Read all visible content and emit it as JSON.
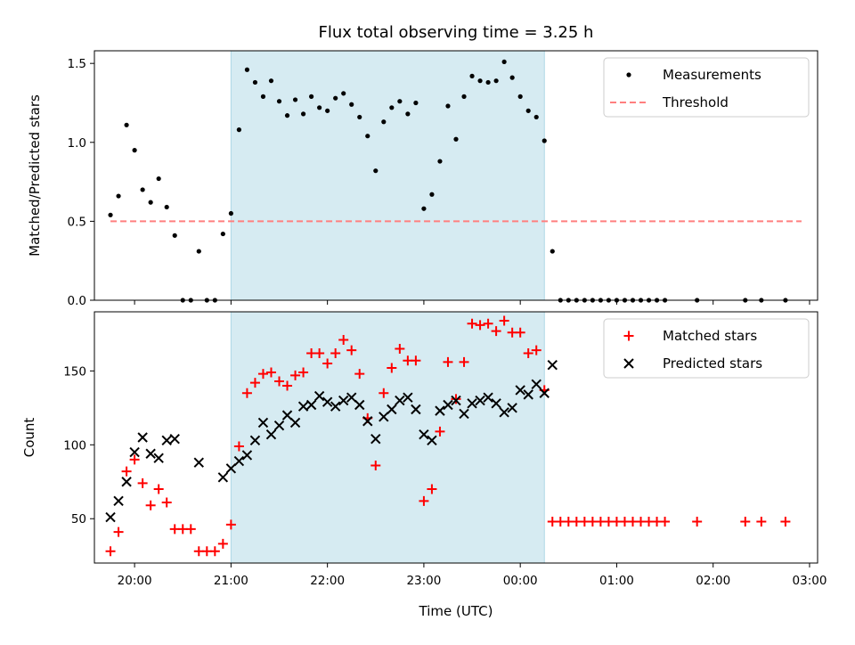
{
  "title": "Flux total observing time = 3.25 h",
  "colors": {
    "shade": "#add8e6",
    "measurement": "#000000",
    "threshold": "#ff7f7f",
    "matched": "#ff0000",
    "predicted": "#000000"
  },
  "chart_data": [
    {
      "type": "scatter",
      "name": "ratio-panel",
      "ylabel": "Matched/Predicted stars",
      "ylim": [
        0,
        1.58
      ],
      "yticks": [
        "0.0",
        "0.5",
        "1.0",
        "1.5"
      ],
      "xlim": [
        "19:35",
        "03:05"
      ],
      "shaded_interval": [
        "21:00",
        "00:15"
      ],
      "legend": {
        "position": "top-right",
        "entries": [
          "Measurements",
          "Threshold"
        ]
      },
      "threshold": {
        "value": 0.5,
        "x_start": "19:45",
        "x_end": "02:55"
      },
      "series": [
        {
          "name": "Measurements",
          "points": [
            [
              "19:45",
              0.54
            ],
            [
              "19:50",
              0.66
            ],
            [
              "19:55",
              1.11
            ],
            [
              "20:00",
              0.95
            ],
            [
              "20:05",
              0.7
            ],
            [
              "20:10",
              0.62
            ],
            [
              "20:15",
              0.77
            ],
            [
              "20:20",
              0.59
            ],
            [
              "20:25",
              0.41
            ],
            [
              "20:30",
              0
            ],
            [
              "20:35",
              0
            ],
            [
              "20:40",
              0.31
            ],
            [
              "20:45",
              0
            ],
            [
              "20:50",
              0
            ],
            [
              "20:55",
              0.42
            ],
            [
              "21:00",
              0.55
            ],
            [
              "21:05",
              1.08
            ],
            [
              "21:10",
              1.46
            ],
            [
              "21:15",
              1.38
            ],
            [
              "21:20",
              1.29
            ],
            [
              "21:25",
              1.39
            ],
            [
              "21:30",
              1.26
            ],
            [
              "21:35",
              1.17
            ],
            [
              "21:40",
              1.27
            ],
            [
              "21:45",
              1.18
            ],
            [
              "21:50",
              1.29
            ],
            [
              "21:55",
              1.22
            ],
            [
              "22:00",
              1.2
            ],
            [
              "22:05",
              1.28
            ],
            [
              "22:10",
              1.31
            ],
            [
              "22:15",
              1.24
            ],
            [
              "22:20",
              1.16
            ],
            [
              "22:25",
              1.04
            ],
            [
              "22:30",
              0.82
            ],
            [
              "22:35",
              1.13
            ],
            [
              "22:40",
              1.22
            ],
            [
              "22:45",
              1.26
            ],
            [
              "22:50",
              1.18
            ],
            [
              "22:55",
              1.25
            ],
            [
              "23:00",
              0.58
            ],
            [
              "23:05",
              0.67
            ],
            [
              "23:10",
              0.88
            ],
            [
              "23:15",
              1.23
            ],
            [
              "23:20",
              1.02
            ],
            [
              "23:25",
              1.29
            ],
            [
              "23:30",
              1.42
            ],
            [
              "23:35",
              1.39
            ],
            [
              "23:40",
              1.38
            ],
            [
              "23:45",
              1.39
            ],
            [
              "23:50",
              1.51
            ],
            [
              "23:55",
              1.41
            ],
            [
              "00:00",
              1.29
            ],
            [
              "00:05",
              1.2
            ],
            [
              "00:10",
              1.16
            ],
            [
              "00:15",
              1.01
            ],
            [
              "00:20",
              0.31
            ],
            [
              "00:25",
              0
            ],
            [
              "00:30",
              0
            ],
            [
              "00:35",
              0
            ],
            [
              "00:40",
              0
            ],
            [
              "00:45",
              0
            ],
            [
              "00:50",
              0
            ],
            [
              "00:55",
              0
            ],
            [
              "01:00",
              0
            ],
            [
              "01:05",
              0
            ],
            [
              "01:10",
              0
            ],
            [
              "01:15",
              0
            ],
            [
              "01:20",
              0
            ],
            [
              "01:25",
              0
            ],
            [
              "01:30",
              0
            ],
            [
              "01:50",
              0
            ],
            [
              "02:20",
              0
            ],
            [
              "02:30",
              0
            ],
            [
              "02:45",
              0
            ]
          ]
        }
      ]
    },
    {
      "type": "scatter",
      "name": "count-panel",
      "xlabel": "Time (UTC)",
      "ylabel": "Count",
      "ylim": [
        20,
        190
      ],
      "yticks": [
        "50",
        "100",
        "150"
      ],
      "xlim": [
        "19:35",
        "03:05"
      ],
      "xticks": [
        "20:00",
        "21:00",
        "22:00",
        "23:00",
        "00:00",
        "01:00",
        "02:00",
        "03:00"
      ],
      "shaded_interval": [
        "21:00",
        "00:15"
      ],
      "legend": {
        "position": "top-right",
        "entries": [
          "Matched stars",
          "Predicted stars"
        ]
      },
      "series": [
        {
          "name": "Matched stars",
          "marker": "+",
          "points": [
            [
              "19:45",
              28
            ],
            [
              "19:50",
              41
            ],
            [
              "19:55",
              82
            ],
            [
              "20:00",
              90
            ],
            [
              "20:05",
              74
            ],
            [
              "20:10",
              59
            ],
            [
              "20:15",
              70
            ],
            [
              "20:20",
              61
            ],
            [
              "20:25",
              43
            ],
            [
              "20:30",
              43
            ],
            [
              "20:35",
              43
            ],
            [
              "20:40",
              28
            ],
            [
              "20:45",
              28
            ],
            [
              "20:50",
              28
            ],
            [
              "20:55",
              33
            ],
            [
              "21:00",
              46
            ],
            [
              "21:05",
              99
            ],
            [
              "21:10",
              135
            ],
            [
              "21:15",
              142
            ],
            [
              "21:20",
              148
            ],
            [
              "21:25",
              149
            ],
            [
              "21:30",
              143
            ],
            [
              "21:35",
              140
            ],
            [
              "21:40",
              147
            ],
            [
              "21:45",
              149
            ],
            [
              "21:50",
              162
            ],
            [
              "21:55",
              162
            ],
            [
              "22:00",
              155
            ],
            [
              "22:05",
              162
            ],
            [
              "22:10",
              171
            ],
            [
              "22:15",
              164
            ],
            [
              "22:20",
              148
            ],
            [
              "22:25",
              118
            ],
            [
              "22:30",
              86
            ],
            [
              "22:35",
              135
            ],
            [
              "22:40",
              152
            ],
            [
              "22:45",
              165
            ],
            [
              "22:50",
              157
            ],
            [
              "22:55",
              157
            ],
            [
              "23:00",
              62
            ],
            [
              "23:05",
              70
            ],
            [
              "23:10",
              109
            ],
            [
              "23:15",
              156
            ],
            [
              "23:20",
              131
            ],
            [
              "23:25",
              156
            ],
            [
              "23:30",
              182
            ],
            [
              "23:35",
              181
            ],
            [
              "23:40",
              182
            ],
            [
              "23:45",
              177
            ],
            [
              "23:50",
              184
            ],
            [
              "23:55",
              176
            ],
            [
              "00:00",
              176
            ],
            [
              "00:05",
              162
            ],
            [
              "00:10",
              164
            ],
            [
              "00:15",
              137
            ],
            [
              "00:20",
              48
            ],
            [
              "00:25",
              48
            ],
            [
              "00:30",
              48
            ],
            [
              "00:35",
              48
            ],
            [
              "00:40",
              48
            ],
            [
              "00:45",
              48
            ],
            [
              "00:50",
              48
            ],
            [
              "00:55",
              48
            ],
            [
              "01:00",
              48
            ],
            [
              "01:05",
              48
            ],
            [
              "01:10",
              48
            ],
            [
              "01:15",
              48
            ],
            [
              "01:20",
              48
            ],
            [
              "01:25",
              48
            ],
            [
              "01:30",
              48
            ],
            [
              "01:50",
              48
            ],
            [
              "02:20",
              48
            ],
            [
              "02:30",
              48
            ],
            [
              "02:45",
              48
            ]
          ]
        },
        {
          "name": "Predicted stars",
          "marker": "x",
          "points": [
            [
              "19:45",
              51
            ],
            [
              "19:50",
              62
            ],
            [
              "19:55",
              75
            ],
            [
              "20:00",
              95
            ],
            [
              "20:05",
              105
            ],
            [
              "20:10",
              94
            ],
            [
              "20:15",
              91
            ],
            [
              "20:20",
              103
            ],
            [
              "20:25",
              104
            ],
            [
              "20:40",
              88
            ],
            [
              "20:55",
              78
            ],
            [
              "21:00",
              84
            ],
            [
              "21:05",
              89
            ],
            [
              "21:10",
              93
            ],
            [
              "21:15",
              103
            ],
            [
              "21:20",
              115
            ],
            [
              "21:25",
              107
            ],
            [
              "21:30",
              113
            ],
            [
              "21:35",
              120
            ],
            [
              "21:40",
              115
            ],
            [
              "21:45",
              126
            ],
            [
              "21:50",
              127
            ],
            [
              "21:55",
              133
            ],
            [
              "22:00",
              129
            ],
            [
              "22:05",
              126
            ],
            [
              "22:10",
              130
            ],
            [
              "22:15",
              132
            ],
            [
              "22:20",
              127
            ],
            [
              "22:25",
              116
            ],
            [
              "22:30",
              104
            ],
            [
              "22:35",
              119
            ],
            [
              "22:40",
              124
            ],
            [
              "22:45",
              130
            ],
            [
              "22:50",
              132
            ],
            [
              "22:55",
              124
            ],
            [
              "23:00",
              107
            ],
            [
              "23:05",
              103
            ],
            [
              "23:10",
              123
            ],
            [
              "23:15",
              127
            ],
            [
              "23:20",
              130
            ],
            [
              "23:25",
              121
            ],
            [
              "23:30",
              128
            ],
            [
              "23:35",
              130
            ],
            [
              "23:40",
              132
            ],
            [
              "23:45",
              128
            ],
            [
              "23:50",
              122
            ],
            [
              "23:55",
              125
            ],
            [
              "00:00",
              137
            ],
            [
              "00:05",
              134
            ],
            [
              "00:10",
              141
            ],
            [
              "00:15",
              135
            ],
            [
              "00:20",
              154
            ]
          ]
        }
      ]
    }
  ]
}
